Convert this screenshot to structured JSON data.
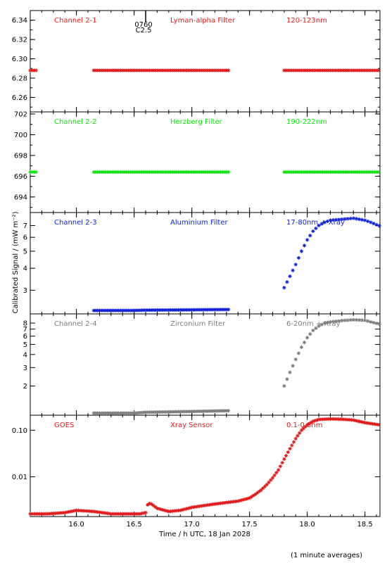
{
  "chart_data": {
    "type": "scatter",
    "ylabel": "Calibrated Signal / (mW m⁻²)",
    "xlabel": "Time / h UTC, 18 Jan 2028",
    "footnote": "(1 minute averages)",
    "xlim": [
      15.6,
      18.63
    ],
    "xticks": [
      "16.0",
      "16.5",
      "17.0",
      "17.5",
      "18.0",
      "18.5"
    ],
    "xtick_values": [
      16.0,
      16.5,
      17.0,
      17.5,
      18.0,
      18.5
    ],
    "marker": "asterisk",
    "panels": [
      {
        "channel": "Channel 2-1",
        "filter": "Lyman-alpha Filter",
        "band": "120-123nm",
        "color": "#e01b1b",
        "scale": "linear",
        "ylim": [
          6.245,
          6.35
        ],
        "yticks": [
          "6.26",
          "6.28",
          "6.30",
          "6.32",
          "6.34"
        ],
        "ytick_values": [
          6.26,
          6.28,
          6.3,
          6.32,
          6.34
        ],
        "segments": [
          {
            "x_start": 15.6,
            "x_end": 15.66,
            "y": 6.288
          },
          {
            "x_start": 16.15,
            "x_end": 17.33,
            "y": 6.288
          },
          {
            "x_start": 17.8,
            "x_end": 18.63,
            "y": 6.288
          }
        ],
        "event_marker": {
          "x": 16.6,
          "label_top": "0760",
          "label_bottom": "C2.5"
        }
      },
      {
        "channel": "Channel 2-2",
        "filter": "Herzberg Filter",
        "band": "190-222nm",
        "color": "#11e011",
        "scale": "linear",
        "ylim": [
          692.5,
          702.2
        ],
        "yticks": [
          "694",
          "696",
          "698",
          "700",
          "702"
        ],
        "ytick_values": [
          694,
          696,
          698,
          700,
          702
        ],
        "segments": [
          {
            "x_start": 15.6,
            "x_end": 15.66,
            "y": 696.4
          },
          {
            "x_start": 16.15,
            "x_end": 17.33,
            "y": 696.4
          },
          {
            "x_start": 17.8,
            "x_end": 18.63,
            "y": 696.4
          }
        ]
      },
      {
        "channel": "Channel 2-3",
        "filter": "Aluminium Filter",
        "band": "17-80nm + Xray",
        "color": "#1023d6",
        "scale": "log",
        "ylim": [
          2.2,
          8.3
        ],
        "yticks": [
          "3",
          "4",
          "5",
          "6",
          "7"
        ],
        "ytick_values": [
          3,
          4,
          5,
          6,
          7
        ],
        "baseline": {
          "x": [
            16.15,
            16.5,
            16.6,
            17.0,
            17.33
          ],
          "y": [
            2.3,
            2.3,
            2.31,
            2.32,
            2.33
          ]
        },
        "curve": {
          "x": [
            17.8,
            17.85,
            17.9,
            17.95,
            18.0,
            18.05,
            18.1,
            18.15,
            18.2,
            18.3,
            18.4,
            18.5,
            18.55,
            18.63
          ],
          "y": [
            3.1,
            3.6,
            4.2,
            5.0,
            5.8,
            6.5,
            7.0,
            7.3,
            7.5,
            7.6,
            7.7,
            7.5,
            7.3,
            6.95
          ]
        }
      },
      {
        "channel": "Channel 2-4",
        "filter": "Zirconium Filter",
        "band": "6-20nm + Xray",
        "color": "#7d7d7d",
        "scale": "log",
        "ylim": [
          1.05,
          9.8
        ],
        "yticks": [
          "2",
          "3",
          "4",
          "5",
          "6",
          "7",
          "8"
        ],
        "ytick_values": [
          2,
          3,
          4,
          5,
          6,
          7,
          8
        ],
        "baseline": {
          "x": [
            16.15,
            16.5,
            16.6,
            17.0,
            17.33
          ],
          "y": [
            1.1,
            1.1,
            1.12,
            1.14,
            1.16
          ]
        },
        "curve": {
          "x": [
            17.8,
            17.85,
            17.9,
            17.95,
            18.0,
            18.05,
            18.1,
            18.15,
            18.2,
            18.3,
            18.4,
            18.5,
            18.55,
            18.63
          ],
          "y": [
            2.0,
            2.7,
            3.6,
            4.7,
            5.8,
            6.8,
            7.5,
            8.0,
            8.2,
            8.45,
            8.6,
            8.5,
            8.2,
            7.8
          ]
        }
      },
      {
        "channel": "GOES",
        "filter": "Xray Sensor",
        "band": "0.1-0.8nm",
        "color": "#e01b1b",
        "scale": "log",
        "ylim": [
          0.0014,
          0.21
        ],
        "yticks": [
          "0.01",
          "0.10"
        ],
        "ytick_values": [
          0.01,
          0.1
        ],
        "curve": {
          "x": [
            15.6,
            15.75,
            15.9,
            16.0,
            16.15,
            16.3,
            16.45,
            16.55,
            16.6,
            16.62,
            16.65,
            16.7,
            16.8,
            16.9,
            17.0,
            17.1,
            17.2,
            17.3,
            17.4,
            17.5,
            17.55,
            17.6,
            17.65,
            17.7,
            17.75,
            17.8,
            17.85,
            17.9,
            17.95,
            18.0,
            18.05,
            18.1,
            18.2,
            18.3,
            18.4,
            18.5,
            18.63
          ],
          "y": [
            0.0016,
            0.0016,
            0.0017,
            0.0019,
            0.0018,
            0.0016,
            0.0016,
            0.0016,
            0.0017,
            0.0027,
            0.0026,
            0.0021,
            0.0018,
            0.0019,
            0.0022,
            0.0024,
            0.0026,
            0.0028,
            0.003,
            0.0035,
            0.0042,
            0.0052,
            0.0068,
            0.0095,
            0.014,
            0.024,
            0.04,
            0.066,
            0.1,
            0.13,
            0.155,
            0.17,
            0.175,
            0.172,
            0.165,
            0.145,
            0.13
          ]
        }
      }
    ]
  }
}
